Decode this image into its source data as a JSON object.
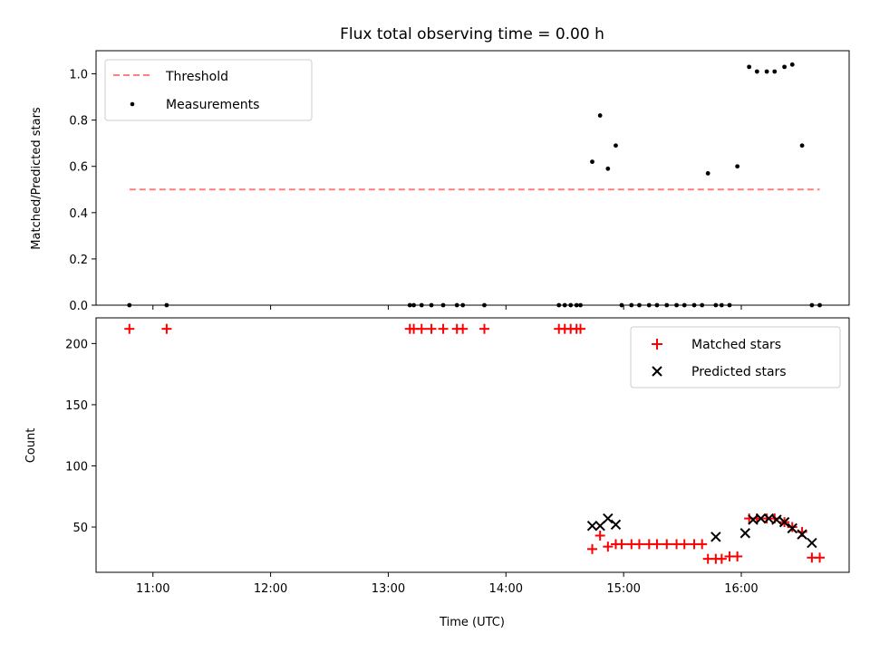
{
  "figure": {
    "title": "Flux total observing time = 0.00 h"
  },
  "chart_data": [
    {
      "type": "scatter",
      "ylabel": "Matched/Predicted stars",
      "xlabel": "",
      "ylim": [
        0,
        1.1
      ],
      "yticks": [
        "0.0",
        "0.2",
        "0.4",
        "0.6",
        "0.8",
        "1.0"
      ],
      "ytick_values": [
        0,
        0.2,
        0.4,
        0.6,
        0.8,
        1.0
      ],
      "xlim": [
        "10:31",
        "16:55"
      ],
      "xticks": [
        "11:00",
        "12:00",
        "13:00",
        "14:00",
        "15:00",
        "16:00"
      ],
      "grid": false,
      "legend": {
        "placement": "upper-left",
        "entries": [
          "Threshold",
          "Measurements"
        ]
      },
      "series": [
        {
          "name": "Threshold",
          "kind": "dashed-line",
          "color": "#ff7f7f",
          "x": [
            "10:48",
            "16:40"
          ],
          "y": [
            0.5,
            0.5
          ]
        },
        {
          "name": "Measurements",
          "kind": "dots",
          "color": "#000000",
          "x": [
            "10:48",
            "11:07",
            "13:11",
            "13:13",
            "13:17",
            "13:22",
            "13:28",
            "13:35",
            "13:38",
            "13:49",
            "14:27",
            "14:30",
            "14:33",
            "14:36",
            "14:38",
            "14:44",
            "14:48",
            "14:52",
            "14:56",
            "14:59",
            "15:04",
            "15:08",
            "15:13",
            "15:17",
            "15:22",
            "15:27",
            "15:31",
            "15:36",
            "15:40",
            "15:43",
            "15:47",
            "15:50",
            "15:54",
            "15:58",
            "16:04",
            "16:08",
            "16:13",
            "16:17",
            "16:22",
            "16:26",
            "16:31",
            "16:36",
            "16:40"
          ],
          "y": [
            0,
            0,
            0,
            0,
            0,
            0,
            0,
            0,
            0,
            0,
            0,
            0,
            0,
            0,
            0,
            0.62,
            0.82,
            0.59,
            0.69,
            0,
            0,
            0,
            0,
            0,
            0,
            0,
            0,
            0,
            0,
            0.57,
            0,
            0,
            0,
            0.6,
            1.03,
            1.01,
            1.01,
            1.01,
            1.03,
            1.04,
            0.69,
            0,
            0
          ]
        }
      ]
    },
    {
      "type": "scatter",
      "ylabel": "Count",
      "xlabel": "Time (UTC)",
      "ylim": [
        13,
        221
      ],
      "yticks": [
        "50",
        "100",
        "150",
        "200"
      ],
      "ytick_values": [
        50,
        100,
        150,
        200
      ],
      "xlim": [
        "10:31",
        "16:55"
      ],
      "xticks": [
        "11:00",
        "12:00",
        "13:00",
        "14:00",
        "15:00",
        "16:00"
      ],
      "grid": false,
      "legend": {
        "placement": "upper-right",
        "entries": [
          "Matched stars",
          "Predicted stars"
        ]
      },
      "series": [
        {
          "name": "Matched stars",
          "marker": "plus",
          "color": "#ff0000",
          "x": [
            "10:48",
            "11:07",
            "13:11",
            "13:13",
            "13:17",
            "13:22",
            "13:28",
            "13:35",
            "13:38",
            "13:49",
            "14:27",
            "14:30",
            "14:33",
            "14:36",
            "14:38",
            "14:44",
            "14:48",
            "14:52",
            "14:56",
            "14:59",
            "15:04",
            "15:08",
            "15:13",
            "15:17",
            "15:22",
            "15:27",
            "15:31",
            "15:36",
            "15:40",
            "15:43",
            "15:47",
            "15:50",
            "15:54",
            "15:58",
            "16:04",
            "16:08",
            "16:13",
            "16:17",
            "16:22",
            "16:26",
            "16:31",
            "16:36",
            "16:40"
          ],
          "y": [
            212,
            212,
            212,
            212,
            212,
            212,
            212,
            212,
            212,
            212,
            212,
            212,
            212,
            212,
            212,
            32,
            43,
            34,
            36,
            36,
            36,
            36,
            36,
            36,
            36,
            36,
            36,
            36,
            36,
            24,
            24,
            24,
            26,
            26,
            57,
            57,
            57,
            57,
            54,
            50,
            46,
            25,
            25
          ]
        },
        {
          "name": "Predicted stars",
          "marker": "x",
          "color": "#000000",
          "x": [
            "14:44",
            "14:48",
            "14:52",
            "14:56",
            "15:47",
            "16:02",
            "16:06",
            "16:10",
            "16:14",
            "16:18",
            "16:22",
            "16:26",
            "16:31",
            "16:36"
          ],
          "y": [
            51,
            51,
            57,
            52,
            42,
            45,
            56,
            57,
            57,
            56,
            54,
            49,
            44,
            37
          ]
        }
      ]
    }
  ]
}
